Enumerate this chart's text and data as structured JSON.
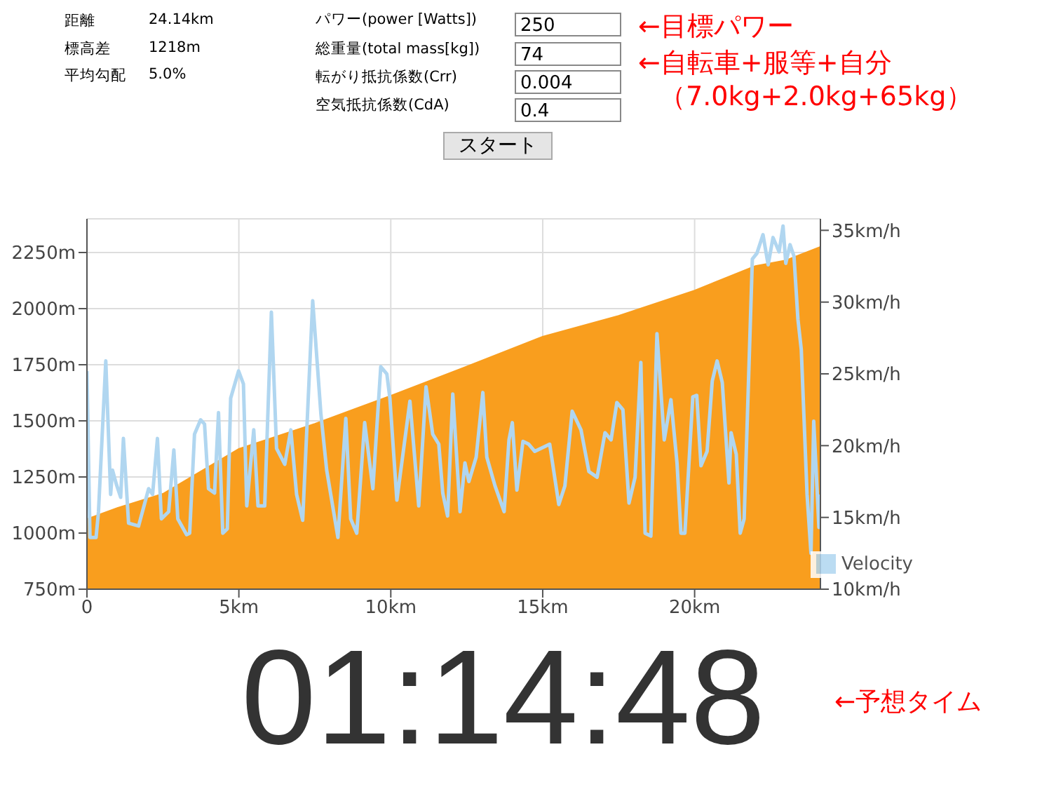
{
  "chart_data": {
    "type": "area",
    "xlim": [
      0,
      24.14
    ],
    "xticks": [
      0,
      {
        "value": 5,
        "label": "5km"
      },
      {
        "value": 10,
        "label": "10km"
      },
      {
        "value": 15,
        "label": "15km"
      },
      {
        "value": 20,
        "label": "20km"
      }
    ],
    "ylim": [
      750,
      2400
    ],
    "yticks": [
      {
        "value": 750,
        "label": "750m"
      },
      {
        "value": 1000,
        "label": "1000m"
      },
      {
        "value": 1250,
        "label": "1250m"
      },
      {
        "value": 1500,
        "label": "1500m"
      },
      {
        "value": 1750,
        "label": "1750m"
      },
      {
        "value": 2000,
        "label": "2000m"
      },
      {
        "value": 2250,
        "label": "2250m"
      }
    ],
    "y2lim": [
      10,
      35.8
    ],
    "y2ticks": [
      {
        "value": 10,
        "label": "10km/h"
      },
      {
        "value": 15,
        "label": "15km/h"
      },
      {
        "value": 20,
        "label": "20km/h"
      },
      {
        "value": 25,
        "label": "25km/h"
      },
      {
        "value": 30,
        "label": "30km/h"
      },
      {
        "value": 35,
        "label": "35km/h"
      }
    ],
    "grid": true,
    "legend": "bottom right",
    "series": [
      {
        "color": "#f99e1e",
        "x": [
          0,
          1,
          2.5,
          5,
          7.5,
          10,
          12.4,
          15,
          17.5,
          20,
          22,
          23,
          24.14
        ],
        "values": [
          1062,
          1112,
          1175,
          1375,
          1487,
          1612,
          1737,
          1875,
          1968,
          2081,
          2190,
          2215,
          2275
        ]
      },
      {
        "type": "line",
        "name": "Velocity",
        "color": "#b0d6f0",
        "axis": "y2",
        "x": [
          0,
          0.1,
          0.3,
          0.38,
          0.62,
          0.78,
          0.84,
          0.97,
          1.11,
          1.2,
          1.37,
          1.7,
          2.03,
          2.16,
          2.32,
          2.45,
          2.69,
          2.86,
          2.99,
          3.28,
          3.38,
          3.54,
          3.74,
          3.87,
          4.0,
          4.2,
          4.33,
          4.47,
          4.62,
          4.73,
          4.99,
          5.15,
          5.26,
          5.49,
          5.63,
          5.85,
          6.07,
          6.24,
          6.51,
          6.71,
          6.9,
          7.1,
          7.43,
          7.7,
          7.89,
          8.26,
          8.52,
          8.68,
          8.88,
          9.14,
          9.41,
          9.67,
          9.87,
          9.97,
          10.2,
          10.63,
          10.92,
          11.16,
          11.38,
          11.58,
          11.71,
          11.87,
          12.04,
          12.28,
          12.44,
          12.57,
          12.81,
          13.03,
          13.16,
          13.43,
          13.73,
          13.89,
          14.0,
          14.15,
          14.35,
          14.54,
          14.74,
          15.23,
          15.53,
          15.73,
          15.97,
          16.26,
          16.52,
          16.79,
          17.05,
          17.25,
          17.44,
          17.64,
          17.84,
          18.04,
          18.23,
          18.37,
          18.56,
          18.76,
          19.0,
          19.22,
          19.42,
          19.55,
          19.68,
          19.94,
          20.07,
          20.21,
          20.41,
          20.58,
          20.74,
          20.91,
          21.13,
          21.2,
          21.37,
          21.5,
          21.63,
          21.9,
          22.05,
          22.25,
          22.42,
          22.58,
          22.78,
          22.91,
          23.0,
          23.14,
          23.27,
          23.4,
          23.51,
          23.7,
          23.83,
          23.92,
          24.09,
          24.14
        ],
        "values": [
          25.2,
          13.6,
          13.6,
          15.4,
          25.9,
          16.6,
          18.3,
          17.3,
          16.4,
          20.5,
          14.6,
          14.4,
          17.0,
          16.6,
          20.5,
          14.9,
          15.4,
          19.7,
          14.9,
          13.8,
          13.9,
          20.8,
          21.8,
          21.5,
          17.0,
          16.7,
          22.3,
          13.9,
          14.2,
          23.3,
          25.2,
          24.3,
          15.8,
          21.1,
          15.8,
          15.8,
          29.3,
          19.8,
          18.7,
          21.1,
          16.6,
          14.8,
          30.1,
          22.2,
          18.3,
          13.6,
          21.9,
          14.9,
          13.9,
          21.6,
          17.0,
          25.5,
          25.0,
          23.3,
          16.2,
          23.1,
          15.8,
          24.1,
          20.8,
          20.1,
          16.7,
          15.1,
          23.6,
          15.4,
          18.8,
          17.5,
          19.2,
          23.7,
          19.2,
          17.2,
          15.4,
          20.4,
          21.6,
          16.9,
          20.3,
          20.1,
          19.6,
          20.1,
          15.9,
          17.2,
          22.4,
          21.1,
          18.2,
          17.8,
          20.9,
          20.4,
          23.0,
          22.5,
          16.0,
          17.8,
          25.8,
          13.9,
          13.7,
          27.8,
          20.4,
          23.2,
          18.8,
          13.9,
          13.9,
          23.4,
          23.5,
          18.6,
          19.6,
          24.5,
          25.9,
          24.4,
          17.4,
          20.9,
          19.4,
          13.9,
          14.9,
          33.0,
          33.4,
          34.7,
          32.6,
          34.5,
          33.5,
          35.3,
          32.7,
          34.0,
          33.2,
          28.8,
          26.7,
          16.6,
          12.5,
          21.7,
          14.3,
          16.6
        ]
      }
    ],
    "annotations": [
      "距離",
      "24.14km",
      "標高差",
      "1218m",
      "平均勾配",
      "5.0%",
      "パワー(power [Watts])",
      "総重量(total mass[kg])",
      "転がり抵抗係数(Crr)",
      "空気抵抗係数(CdA)",
      "250",
      "74",
      "0.004",
      "0.4",
      "スタート",
      "←目標パワー",
      "←自転車+服等+自分",
      "（7.0kg+2.0kg+65kg）",
      "01:14:48",
      "←予想タイム"
    ]
  }
}
